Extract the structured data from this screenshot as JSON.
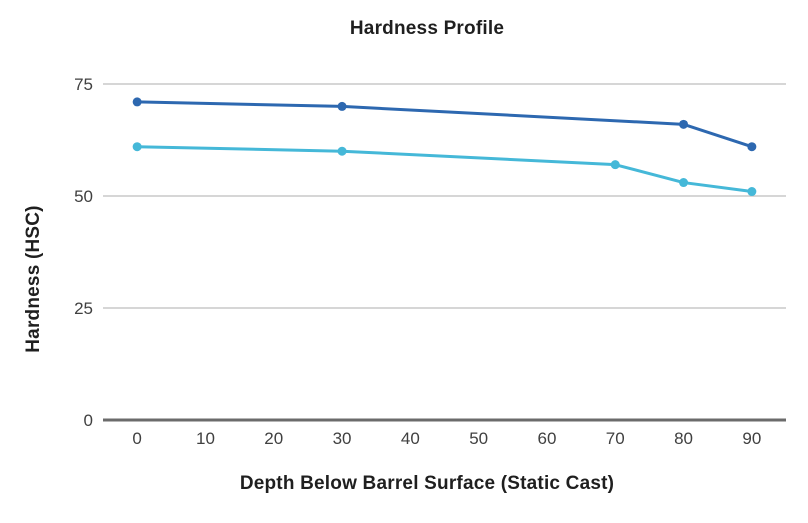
{
  "chart_data": {
    "type": "line",
    "title": "Hardness Profile",
    "xlabel": "Depth Below Barrel Surface (Static Cast)",
    "ylabel": "Hardness (HSC)",
    "xlim": [
      -5,
      95
    ],
    "ylim": [
      0,
      75
    ],
    "x_ticks": [
      0,
      10,
      20,
      30,
      40,
      50,
      60,
      70,
      80,
      90
    ],
    "y_ticks": [
      0,
      25,
      50,
      75
    ],
    "grid": "horizontal",
    "legend": "none",
    "series": [
      {
        "name": "upper-line",
        "color": "#2d68b0",
        "points": [
          [
            0,
            71
          ],
          [
            30,
            70
          ],
          [
            80,
            66
          ],
          [
            90,
            61
          ]
        ]
      },
      {
        "name": "lower-line",
        "color": "#45b8d8",
        "points": [
          [
            0,
            61
          ],
          [
            30,
            60
          ],
          [
            70,
            57
          ],
          [
            80,
            53
          ],
          [
            90,
            51
          ]
        ]
      }
    ],
    "colors": {
      "grid_line": "#c9c9c9",
      "axis_line": "#6b6b6b",
      "tick_text": "#404040",
      "title_text": "#1f1f1f",
      "background": "#ffffff"
    }
  }
}
